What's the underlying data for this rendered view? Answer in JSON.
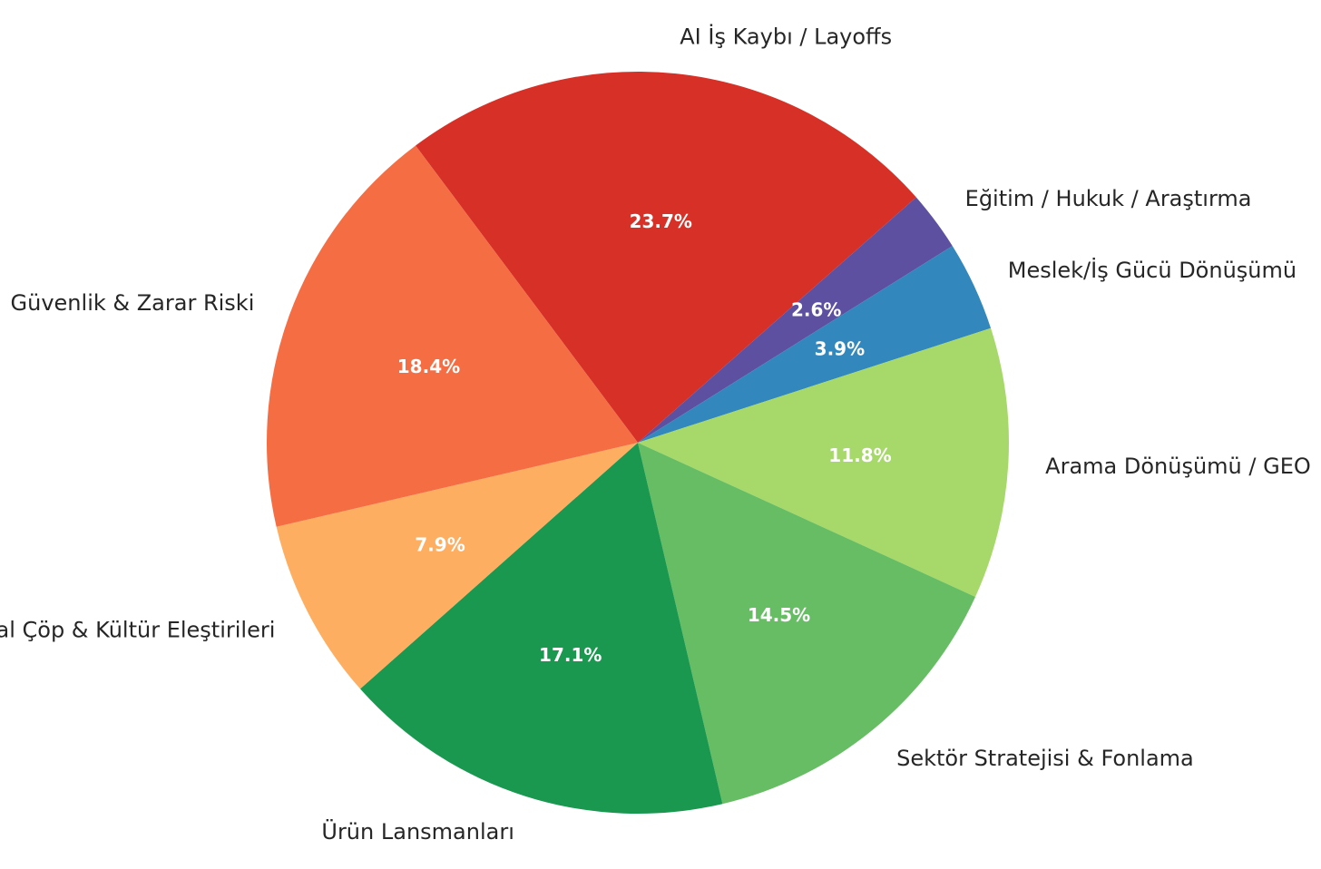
{
  "chart_data": {
    "type": "pie",
    "title": "",
    "start_angle_deg": 126.8,
    "direction": "clockwise",
    "slices": [
      {
        "label": "AI İş Kaybı / Layoffs",
        "value": 23.7,
        "pct_label": "23.7%",
        "color": "#d73027"
      },
      {
        "label": "Eğitim / Hukuk / Araştırma",
        "value": 2.6,
        "pct_label": "2.6%",
        "color": "#5e50a1"
      },
      {
        "label": "Meslek/İş Gücü Dönüşümü",
        "value": 3.9,
        "pct_label": "3.9%",
        "color": "#3288bd"
      },
      {
        "label": "Arama Dönüşümü / GEO",
        "value": 11.8,
        "pct_label": "11.8%",
        "color": "#a6d96a"
      },
      {
        "label": "Sektör Stratejisi & Fonlama",
        "value": 14.5,
        "pct_label": "14.5%",
        "color": "#66bd63"
      },
      {
        "label": "Ürün Lansmanları",
        "value": 17.1,
        "pct_label": "17.1%",
        "color": "#1a9850"
      },
      {
        "label": "AI Slop / Dijital Çöp & Kültür Eleştirileri",
        "value": 7.9,
        "pct_label": "7.9%",
        "color": "#fdae61"
      },
      {
        "label": "Güvenlik & Zarar Riski",
        "value": 18.4,
        "pct_label": "18.4%",
        "color": "#f46d43"
      }
    ]
  }
}
